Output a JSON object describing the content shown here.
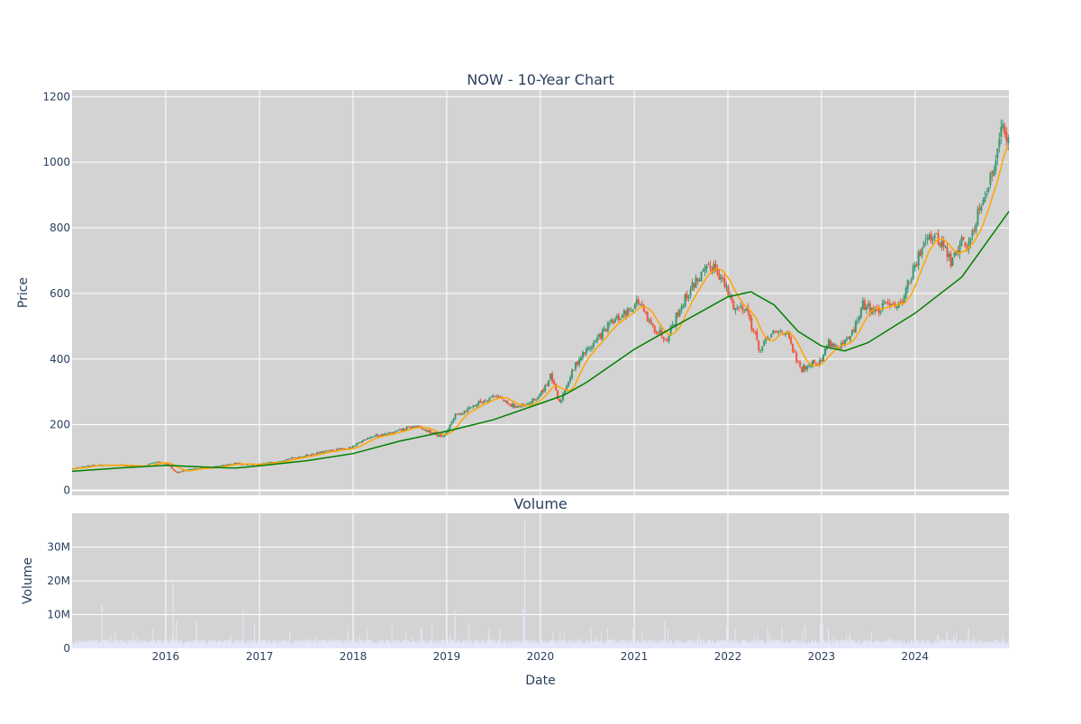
{
  "chart_data": [
    {
      "type": "candlestick",
      "title": "NOW - 10-Year Chart",
      "xlabel": "",
      "ylabel": "Price",
      "x_range": [
        "2015-01-01",
        "2025-01-01"
      ],
      "ylim": [
        -15,
        1220
      ],
      "yticks": [
        0,
        200,
        400,
        600,
        800,
        1000,
        1200
      ],
      "xticks": [
        "2016-01-01",
        "2017-01-01",
        "2018-01-01",
        "2019-01-01",
        "2020-01-01",
        "2021-01-01",
        "2022-01-01",
        "2023-01-01",
        "2024-01-01"
      ],
      "grid": true,
      "legend": "none",
      "colors": {
        "up": "#3d9970",
        "down": "#ef553b",
        "ma_short": "#ffa500",
        "ma_long": "#008000",
        "plot_bg": "#d3d3d3"
      },
      "price_path": [
        {
          "date": "2015-01-01",
          "close": 66
        },
        {
          "date": "2015-04-01",
          "close": 76
        },
        {
          "date": "2015-07-01",
          "close": 78
        },
        {
          "date": "2015-10-01",
          "close": 72
        },
        {
          "date": "2015-12-01",
          "close": 86
        },
        {
          "date": "2016-01-15",
          "close": 78
        },
        {
          "date": "2016-02-15",
          "close": 54
        },
        {
          "date": "2016-04-01",
          "close": 64
        },
        {
          "date": "2016-07-01",
          "close": 70
        },
        {
          "date": "2016-10-01",
          "close": 82
        },
        {
          "date": "2017-01-01",
          "close": 78
        },
        {
          "date": "2017-04-01",
          "close": 92
        },
        {
          "date": "2017-07-01",
          "close": 106
        },
        {
          "date": "2017-10-01",
          "close": 120
        },
        {
          "date": "2018-01-01",
          "close": 130
        },
        {
          "date": "2018-03-01",
          "close": 162
        },
        {
          "date": "2018-06-01",
          "close": 174
        },
        {
          "date": "2018-09-01",
          "close": 196
        },
        {
          "date": "2018-12-20",
          "close": 162
        },
        {
          "date": "2019-01-10",
          "close": 184
        },
        {
          "date": "2019-02-01",
          "close": 224
        },
        {
          "date": "2019-05-01",
          "close": 264
        },
        {
          "date": "2019-07-15",
          "close": 292
        },
        {
          "date": "2019-09-01",
          "close": 260
        },
        {
          "date": "2019-11-01",
          "close": 254
        },
        {
          "date": "2020-01-01",
          "close": 288
        },
        {
          "date": "2020-02-15",
          "close": 350
        },
        {
          "date": "2020-03-18",
          "close": 262
        },
        {
          "date": "2020-04-15",
          "close": 322
        },
        {
          "date": "2020-06-01",
          "close": 400
        },
        {
          "date": "2020-08-01",
          "close": 450
        },
        {
          "date": "2020-10-01",
          "close": 505
        },
        {
          "date": "2020-12-01",
          "close": 540
        },
        {
          "date": "2021-01-20",
          "close": 578
        },
        {
          "date": "2021-03-01",
          "close": 510
        },
        {
          "date": "2021-05-10",
          "close": 465
        },
        {
          "date": "2021-07-01",
          "close": 555
        },
        {
          "date": "2021-09-01",
          "close": 640
        },
        {
          "date": "2021-11-15",
          "close": 690
        },
        {
          "date": "2022-01-05",
          "close": 600
        },
        {
          "date": "2022-02-01",
          "close": 555
        },
        {
          "date": "2022-03-15",
          "close": 560
        },
        {
          "date": "2022-05-10",
          "close": 425
        },
        {
          "date": "2022-06-15",
          "close": 470
        },
        {
          "date": "2022-08-15",
          "close": 490
        },
        {
          "date": "2022-10-15",
          "close": 365
        },
        {
          "date": "2022-12-01",
          "close": 395
        },
        {
          "date": "2023-01-01",
          "close": 390
        },
        {
          "date": "2023-02-01",
          "close": 455
        },
        {
          "date": "2023-03-15",
          "close": 430
        },
        {
          "date": "2023-05-01",
          "close": 470
        },
        {
          "date": "2023-06-15",
          "close": 565
        },
        {
          "date": "2023-08-15",
          "close": 545
        },
        {
          "date": "2023-10-01",
          "close": 580
        },
        {
          "date": "2023-11-01",
          "close": 560
        },
        {
          "date": "2024-01-15",
          "close": 700
        },
        {
          "date": "2024-02-15",
          "close": 785
        },
        {
          "date": "2024-04-20",
          "close": 755
        },
        {
          "date": "2024-05-25",
          "close": 690
        },
        {
          "date": "2024-07-01",
          "close": 760
        },
        {
          "date": "2024-08-01",
          "close": 745
        },
        {
          "date": "2024-09-15",
          "close": 880
        },
        {
          "date": "2024-11-01",
          "close": 960
        },
        {
          "date": "2024-12-01",
          "close": 1115
        },
        {
          "date": "2024-12-31",
          "close": 1060
        }
      ],
      "ma_long_path": [
        {
          "date": "2015-01-01",
          "value": 58
        },
        {
          "date": "2015-07-01",
          "value": 68
        },
        {
          "date": "2016-01-01",
          "value": 76
        },
        {
          "date": "2016-07-01",
          "value": 70
        },
        {
          "date": "2016-10-01",
          "value": 68
        },
        {
          "date": "2017-01-01",
          "value": 75
        },
        {
          "date": "2017-07-01",
          "value": 90
        },
        {
          "date": "2018-01-01",
          "value": 112
        },
        {
          "date": "2018-07-01",
          "value": 150
        },
        {
          "date": "2019-01-01",
          "value": 180
        },
        {
          "date": "2019-07-01",
          "value": 215
        },
        {
          "date": "2020-01-01",
          "value": 265
        },
        {
          "date": "2020-04-01",
          "value": 290
        },
        {
          "date": "2020-07-01",
          "value": 330
        },
        {
          "date": "2021-01-01",
          "value": 430
        },
        {
          "date": "2021-07-01",
          "value": 510
        },
        {
          "date": "2022-01-01",
          "value": 590
        },
        {
          "date": "2022-04-01",
          "value": 605
        },
        {
          "date": "2022-07-01",
          "value": 565
        },
        {
          "date": "2022-10-01",
          "value": 485
        },
        {
          "date": "2023-01-01",
          "value": 440
        },
        {
          "date": "2023-04-01",
          "value": 425
        },
        {
          "date": "2023-07-01",
          "value": 450
        },
        {
          "date": "2024-01-01",
          "value": 540
        },
        {
          "date": "2024-07-01",
          "value": 650
        },
        {
          "date": "2025-01-01",
          "value": 850
        }
      ]
    },
    {
      "type": "bar",
      "title": "Volume",
      "xlabel": "Date",
      "ylabel": "Volume",
      "ylim": [
        0,
        40000000
      ],
      "yticks": [
        0,
        10000000,
        20000000,
        30000000
      ],
      "ytick_labels": [
        "0",
        "10M",
        "20M",
        "30M"
      ],
      "xticks": [
        "2016-01-01",
        "2017-01-01",
        "2018-01-01",
        "2019-01-01",
        "2020-01-01",
        "2021-01-01",
        "2022-01-01",
        "2023-01-01",
        "2024-01-01"
      ],
      "xtick_labels": [
        "2016",
        "2017",
        "2018",
        "2019",
        "2020",
        "2021",
        "2022",
        "2023",
        "2024"
      ],
      "grid": true,
      "color": "#e6e6fa",
      "baseline_volume": 1800000,
      "spikes": [
        {
          "date": "2015-04-25",
          "value": 13000000
        },
        {
          "date": "2016-01-28",
          "value": 20000000
        },
        {
          "date": "2016-02-10",
          "value": 8000000
        },
        {
          "date": "2016-04-28",
          "value": 8500000
        },
        {
          "date": "2016-10-27",
          "value": 11000000
        },
        {
          "date": "2017-04-27",
          "value": 5000000
        },
        {
          "date": "2019-01-31",
          "value": 11000000
        },
        {
          "date": "2019-07-25",
          "value": 5500000
        },
        {
          "date": "2019-10-24",
          "value": 11500000
        },
        {
          "date": "2019-10-30",
          "value": 38000000
        },
        {
          "date": "2020-03-16",
          "value": 4500000
        },
        {
          "date": "2021-04-29",
          "value": 8500000
        },
        {
          "date": "2022-01-27",
          "value": 5500000
        },
        {
          "date": "2022-07-28",
          "value": 6500000
        },
        {
          "date": "2023-01-26",
          "value": 6000000
        },
        {
          "date": "2024-07-25",
          "value": 6000000
        },
        {
          "date": "2024-05-02",
          "value": 5000000
        }
      ]
    }
  ]
}
